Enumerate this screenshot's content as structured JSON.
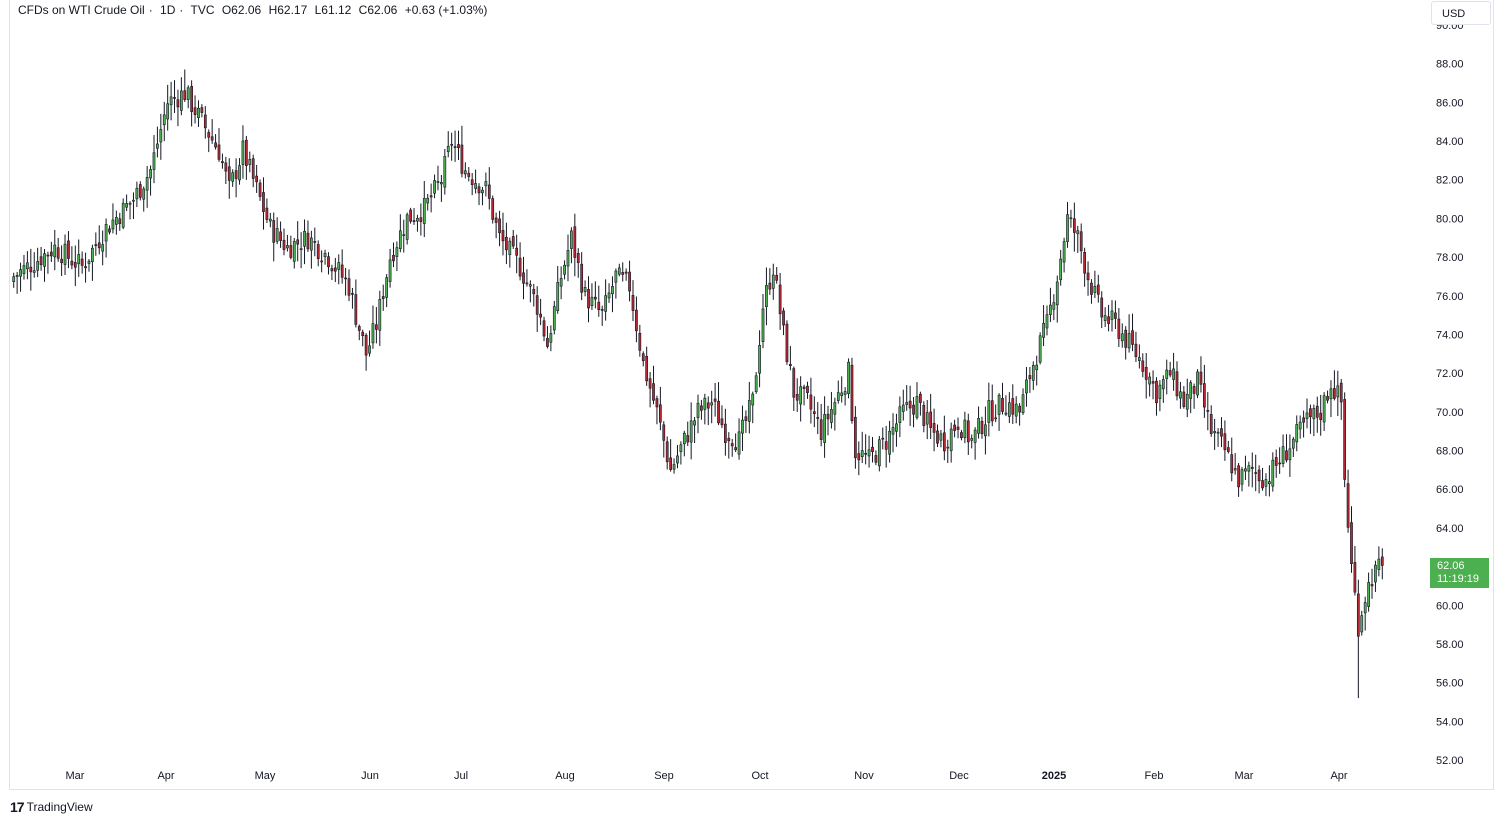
{
  "legend": {
    "symbol": "CFDs on WTI Crude Oil",
    "interval": "1D",
    "exchange": "TVC",
    "open": "O62.06",
    "high": "H62.17",
    "low": "L61.12",
    "close": "C62.06",
    "change": "+0.63 (+1.03%)"
  },
  "currency_label": "USD",
  "last_price": {
    "value": "62.06",
    "countdown": "11:19:19",
    "color": "#4caf50"
  },
  "brand": {
    "logo": "17",
    "name": "TradingView"
  },
  "colors": {
    "up": "#26a69a",
    "down": "#ef5350",
    "up_body": "#4caf50",
    "down_body": "#b22833",
    "wick": "#131722"
  },
  "chart_data": {
    "type": "candlestick",
    "ylim": [
      52,
      90
    ],
    "yticks": [
      "52.00",
      "54.00",
      "56.00",
      "58.00",
      "60.00",
      "62.00",
      "64.00",
      "66.00",
      "68.00",
      "70.00",
      "72.00",
      "74.00",
      "76.00",
      "78.00",
      "80.00",
      "82.00",
      "84.00",
      "86.00",
      "88.00",
      "90.00"
    ],
    "x_labels": [
      {
        "label": "Mar",
        "bold": false
      },
      {
        "label": "Apr",
        "bold": false
      },
      {
        "label": "May",
        "bold": false
      },
      {
        "label": "Jun",
        "bold": false
      },
      {
        "label": "Jul",
        "bold": false
      },
      {
        "label": "Aug",
        "bold": false
      },
      {
        "label": "Sep",
        "bold": false
      },
      {
        "label": "Oct",
        "bold": false
      },
      {
        "label": "Nov",
        "bold": false
      },
      {
        "label": "Dec",
        "bold": false
      },
      {
        "label": "2025",
        "bold": true
      },
      {
        "label": "Feb",
        "bold": false
      },
      {
        "label": "Mar",
        "bold": false
      },
      {
        "label": "Apr",
        "bold": false
      }
    ],
    "close_path": [
      [
        0,
        77.0
      ],
      [
        12,
        78.5
      ],
      [
        20,
        77.5
      ],
      [
        27,
        79.5
      ],
      [
        35,
        81.0
      ],
      [
        40,
        82.5
      ],
      [
        45,
        86.0
      ],
      [
        50,
        86.5
      ],
      [
        55,
        85.0
      ],
      [
        60,
        83.5
      ],
      [
        63,
        81.5
      ],
      [
        67,
        83.5
      ],
      [
        72,
        81.0
      ],
      [
        75,
        79.5
      ],
      [
        80,
        78.5
      ],
      [
        86,
        79.0
      ],
      [
        92,
        78.0
      ],
      [
        98,
        76.5
      ],
      [
        100,
        75.0
      ],
      [
        103,
        73.0
      ],
      [
        106,
        74.5
      ],
      [
        110,
        78.0
      ],
      [
        115,
        80.0
      ],
      [
        120,
        80.5
      ],
      [
        125,
        82.0
      ],
      [
        128,
        84.0
      ],
      [
        132,
        82.5
      ],
      [
        138,
        81.5
      ],
      [
        142,
        79.0
      ],
      [
        148,
        77.5
      ],
      [
        153,
        75.5
      ],
      [
        156,
        73.5
      ],
      [
        160,
        77.0
      ],
      [
        163,
        79.0
      ],
      [
        167,
        76.0
      ],
      [
        172,
        75.0
      ],
      [
        176,
        77.0
      ],
      [
        180,
        76.5
      ],
      [
        184,
        72.5
      ],
      [
        188,
        70.0
      ],
      [
        192,
        67.0
      ],
      [
        196,
        68.5
      ],
      [
        200,
        70.0
      ],
      [
        204,
        70.5
      ],
      [
        208,
        69.0
      ],
      [
        212,
        68.5
      ],
      [
        216,
        70.5
      ],
      [
        219,
        75.5
      ],
      [
        222,
        77.5
      ],
      [
        225,
        74.0
      ],
      [
        228,
        71.0
      ],
      [
        232,
        70.5
      ],
      [
        236,
        69.0
      ],
      [
        240,
        70.5
      ],
      [
        244,
        72.0
      ],
      [
        246,
        68.0
      ],
      [
        250,
        67.5
      ],
      [
        255,
        68.5
      ],
      [
        260,
        70.0
      ],
      [
        264,
        70.5
      ],
      [
        268,
        69.0
      ],
      [
        272,
        68.5
      ],
      [
        276,
        69.5
      ],
      [
        280,
        68.5
      ],
      [
        285,
        70.0
      ],
      [
        290,
        70.5
      ],
      [
        294,
        70.0
      ],
      [
        298,
        72.5
      ],
      [
        302,
        74.5
      ],
      [
        305,
        77.0
      ],
      [
        308,
        80.0
      ],
      [
        311,
        79.0
      ],
      [
        314,
        77.0
      ],
      [
        318,
        75.0
      ],
      [
        322,
        74.5
      ],
      [
        326,
        73.5
      ],
      [
        330,
        72.5
      ],
      [
        334,
        71.0
      ],
      [
        338,
        72.0
      ],
      [
        342,
        70.5
      ],
      [
        346,
        71.5
      ],
      [
        350,
        69.0
      ],
      [
        354,
        68.0
      ],
      [
        358,
        66.5
      ],
      [
        362,
        67.0
      ],
      [
        366,
        66.5
      ],
      [
        370,
        67.5
      ],
      [
        374,
        68.5
      ],
      [
        378,
        69.5
      ],
      [
        382,
        70.0
      ],
      [
        385,
        71.5
      ],
      [
        388,
        70.5
      ],
      [
        389,
        66.5
      ],
      [
        391,
        62.0
      ],
      [
        393,
        59.0
      ],
      [
        395,
        60.5
      ],
      [
        397,
        61.5
      ],
      [
        400,
        62.06
      ]
    ],
    "low_point": {
      "x": 393,
      "y": 55.2
    },
    "high_point": {
      "x": 50,
      "y": 87.7
    }
  }
}
